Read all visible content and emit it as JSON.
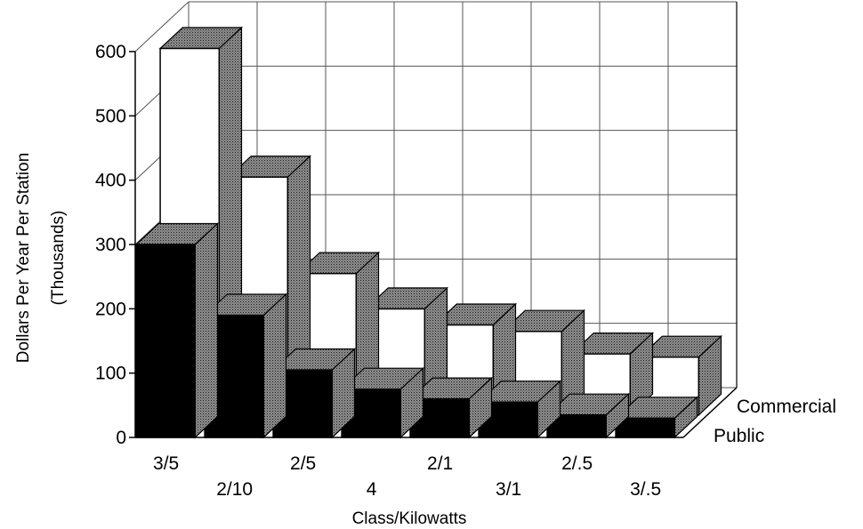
{
  "chart_data": {
    "type": "bar",
    "style": "3d-depth",
    "categories": [
      "3/5",
      "2/10",
      "2/5",
      "4",
      "2/1",
      "3/1",
      "2/.5",
      "3/.5"
    ],
    "series": [
      {
        "name": "Public",
        "values": [
          300,
          190,
          105,
          75,
          60,
          55,
          35,
          30
        ],
        "color": "#000000"
      },
      {
        "name": "Commercial",
        "values": [
          570,
          370,
          220,
          165,
          140,
          130,
          95,
          90
        ],
        "color": "#ffffff"
      }
    ],
    "ylabel": "Dollars Per Year Per Station",
    "ylabel2": "(Thousands)",
    "xlabel": "Class/Kilowatts",
    "yticks": [
      0,
      100,
      200,
      300,
      400,
      500,
      600
    ],
    "ylim": [
      0,
      600
    ],
    "grid": true
  }
}
